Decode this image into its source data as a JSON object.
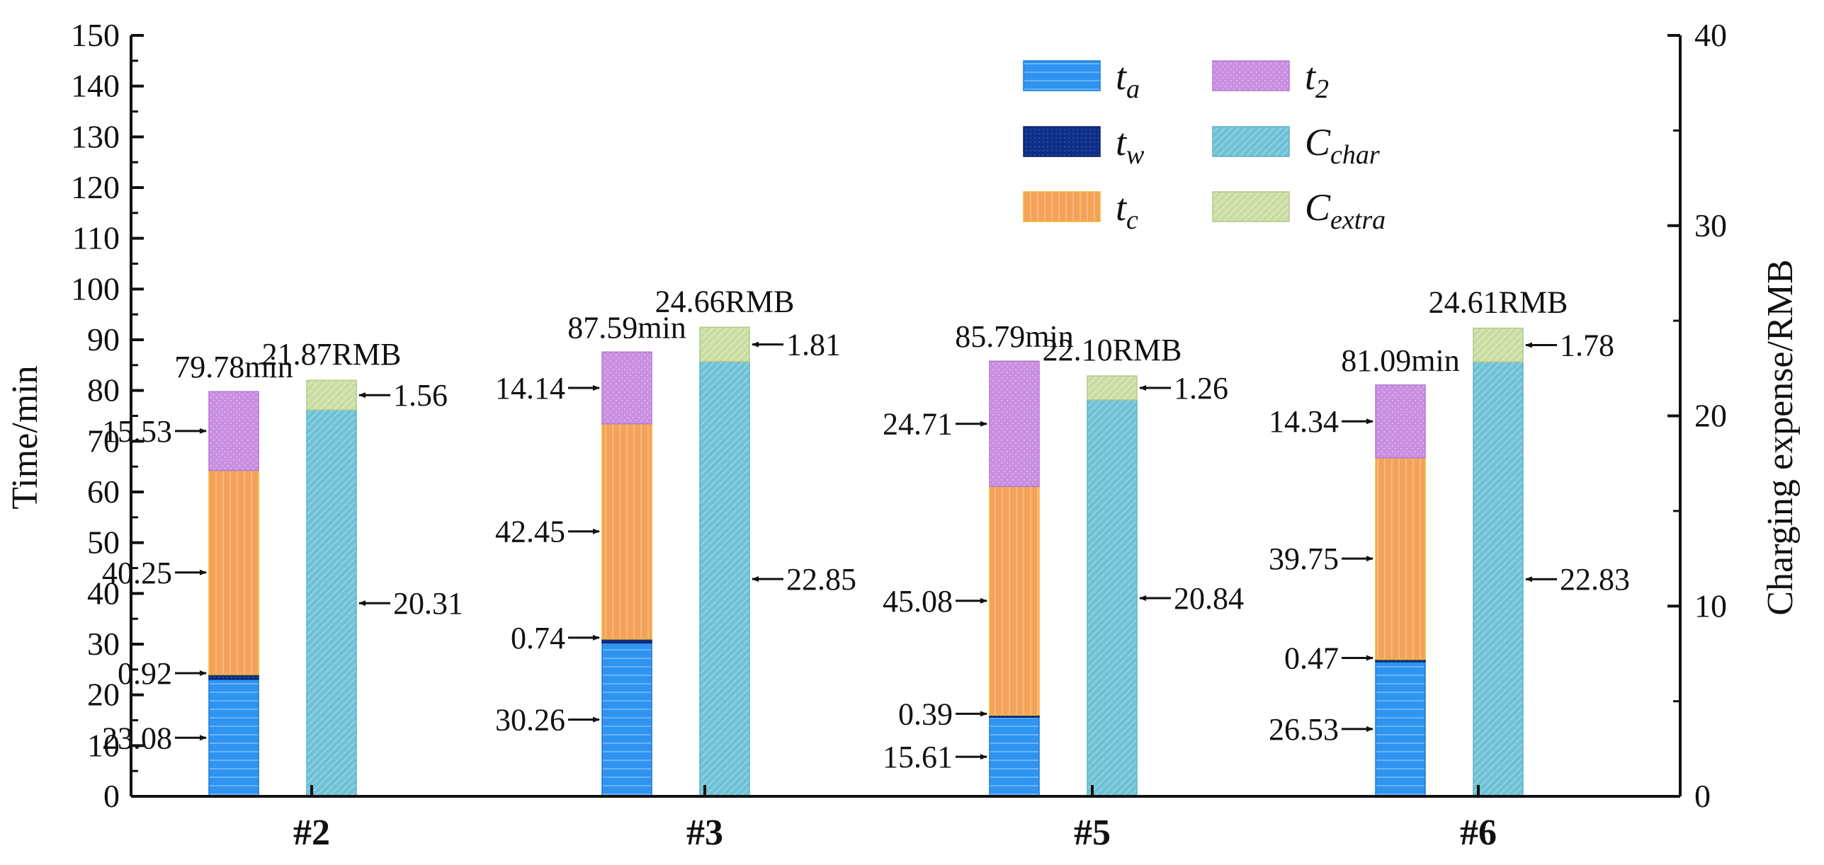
{
  "chart_data": {
    "type": "bar",
    "categories": [
      "#2",
      "#3",
      "#5",
      "#6"
    ],
    "ylabel": "Time/min",
    "y2label": "Charging expense/RMB",
    "ylim": [
      0,
      150
    ],
    "y2lim": [
      0,
      40
    ],
    "yticks": [
      "0",
      "10",
      "20",
      "30",
      "40",
      "50",
      "60",
      "70",
      "80",
      "90",
      "100",
      "110",
      "120",
      "130",
      "140",
      "150"
    ],
    "y2ticks": [
      "0",
      "10",
      "20",
      "30",
      "40"
    ],
    "grid": false,
    "legend_position": "top-center",
    "time_series": [
      {
        "key": "t_a",
        "values": [
          23.08,
          30.26,
          15.61,
          26.53
        ],
        "color": "#2f93f0"
      },
      {
        "key": "t_w",
        "values": [
          0.92,
          0.74,
          0.39,
          0.47
        ],
        "color": "#0f2f86"
      },
      {
        "key": "t_c",
        "values": [
          40.25,
          42.45,
          45.08,
          39.75
        ],
        "color": "#f5a259"
      },
      {
        "key": "t_2",
        "values": [
          15.53,
          14.14,
          24.71,
          14.34
        ],
        "color": "#c98fe0"
      }
    ],
    "cost_series": [
      {
        "key": "C_char",
        "values": [
          20.31,
          22.85,
          20.84,
          22.83
        ],
        "color": "#6fc1d6"
      },
      {
        "key": "C_extra",
        "values": [
          1.56,
          1.81,
          1.26,
          1.78
        ],
        "color": "#c9dca2"
      }
    ],
    "time_segment_labels": [
      [
        "23.08",
        "0.92",
        "40.25",
        "15.53"
      ],
      [
        "30.26",
        "0.74",
        "42.45",
        "14.14"
      ],
      [
        "15.61",
        "0.39",
        "45.08",
        "24.71"
      ],
      [
        "26.53",
        "0.47",
        "39.75",
        "14.34"
      ]
    ],
    "cost_segment_labels": [
      [
        "20.31",
        "1.56"
      ],
      [
        "22.85",
        "1.81"
      ],
      [
        "20.84",
        "1.26"
      ],
      [
        "22.83",
        "1.78"
      ]
    ],
    "time_totals": [
      "79.78min",
      "87.59min",
      "85.79min",
      "81.09min"
    ],
    "cost_totals": [
      "21.87RMB",
      "24.66RMB",
      "22.10RMB",
      "24.61RMB"
    ],
    "legend": [
      {
        "key": "t_a",
        "base": "t",
        "sub": "a"
      },
      {
        "key": "t_w",
        "base": "t",
        "sub": "w"
      },
      {
        "key": "t_c",
        "base": "t",
        "sub": "c"
      },
      {
        "key": "t_2",
        "base": "t",
        "sub": "2"
      },
      {
        "key": "C_char",
        "base": "C",
        "sub": "char"
      },
      {
        "key": "C_extra",
        "base": "C",
        "sub": "extra"
      }
    ]
  }
}
